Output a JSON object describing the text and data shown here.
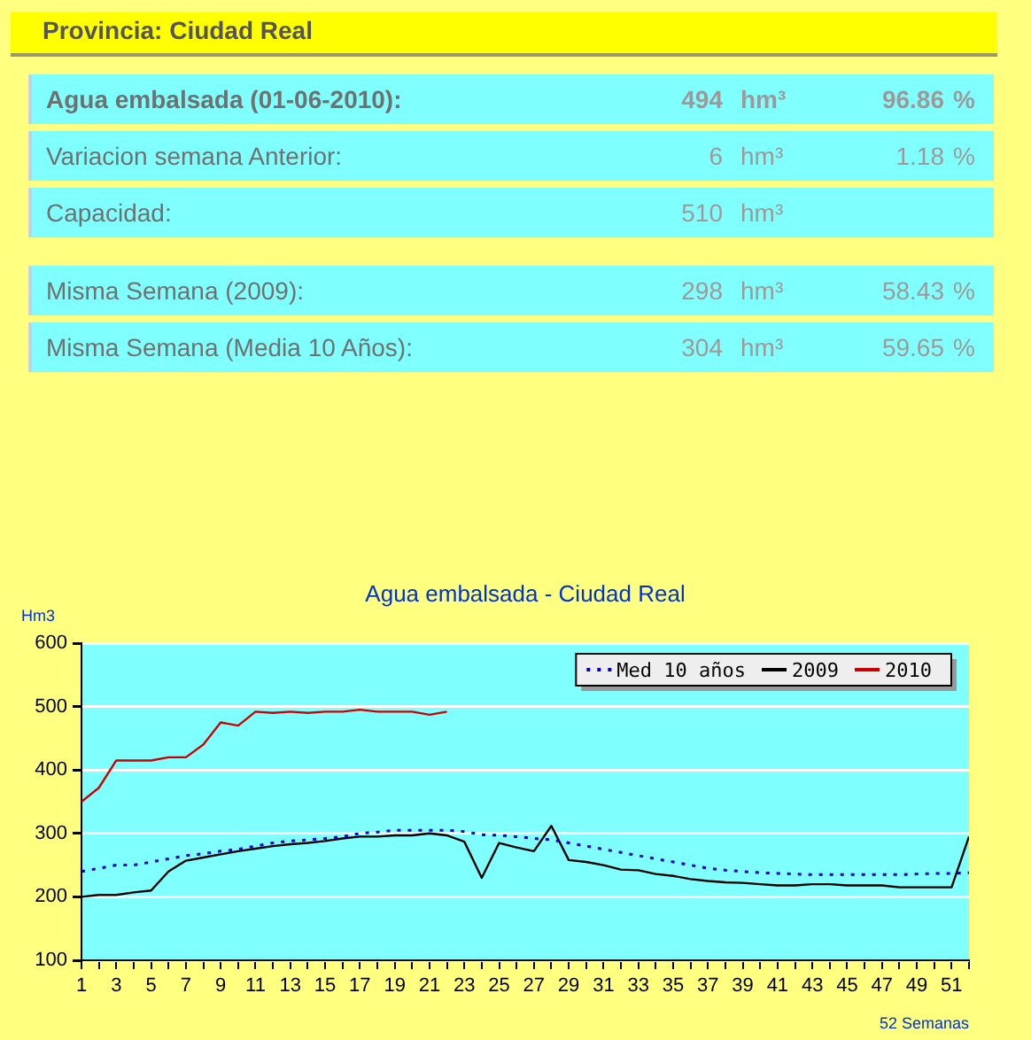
{
  "chart_data": [
    {
      "type": "other",
      "title": "Provincia: Ciudad Real",
      "annotations": [
        "Agua embalsada (01-06-2010):",
        "494",
        "hm³",
        "96.86",
        "%",
        "Variacion semana Anterior:",
        "6",
        "hm³",
        "1.18",
        "%",
        "Capacidad:",
        "510",
        "hm³",
        null,
        null,
        "Misma Semana (2009):",
        "298",
        "hm³",
        "58.43",
        "%",
        "Misma Semana (Media 10 Años):",
        "304",
        "hm³",
        "59.65",
        "%"
      ]
    },
    {
      "type": "line",
      "title": "Agua embalsada - Ciudad Real",
      "ylabel": "Hm3",
      "xlabel": "52 Semanas",
      "x": [
        1,
        2,
        3,
        4,
        5,
        6,
        7,
        8,
        9,
        10,
        11,
        12,
        13,
        14,
        15,
        16,
        17,
        18,
        19,
        20,
        21,
        22,
        23,
        24,
        25,
        26,
        27,
        28,
        29,
        30,
        31,
        32,
        33,
        34,
        35,
        36,
        37,
        38,
        39,
        40,
        41,
        42,
        43,
        44,
        45,
        46,
        47,
        48,
        49,
        50,
        51,
        52
      ],
      "xlim": [
        1,
        52
      ],
      "xticks": [
        1,
        {
          "value": 2,
          "label": null
        },
        3,
        {
          "value": 4,
          "label": null
        },
        5,
        {
          "value": 6,
          "label": null
        },
        7,
        {
          "value": 8,
          "label": null
        },
        9,
        {
          "value": 10,
          "label": null
        },
        11,
        {
          "value": 12,
          "label": null
        },
        13,
        {
          "value": 14,
          "label": null
        },
        15,
        {
          "value": 16,
          "label": null
        },
        17,
        {
          "value": 18,
          "label": null
        },
        19,
        {
          "value": 20,
          "label": null
        },
        21,
        {
          "value": 22,
          "label": null
        },
        23,
        {
          "value": 24,
          "label": null
        },
        25,
        {
          "value": 26,
          "label": null
        },
        27,
        {
          "value": 28,
          "label": null
        },
        29,
        {
          "value": 30,
          "label": null
        },
        31,
        {
          "value": 32,
          "label": null
        },
        33,
        {
          "value": 34,
          "label": null
        },
        35,
        {
          "value": 36,
          "label": null
        },
        37,
        {
          "value": 38,
          "label": null
        },
        39,
        {
          "value": 40,
          "label": null
        },
        41,
        {
          "value": 42,
          "label": null
        },
        43,
        {
          "value": 44,
          "label": null
        },
        45,
        {
          "value": 46,
          "label": null
        },
        47,
        {
          "value": 48,
          "label": null
        },
        49,
        {
          "value": 50,
          "label": null
        },
        51,
        {
          "value": 52,
          "label": null
        }
      ],
      "ylim": [
        100,
        600
      ],
      "yticks": [
        100,
        200,
        300,
        400,
        500,
        600
      ],
      "grid": "y",
      "legend": "top right",
      "marker": "none",
      "series": [
        {
          "name": "Med 10 años",
          "color": "#0000cc",
          "line_style": "dotted",
          "values": [
            240,
            245,
            250,
            250,
            255,
            260,
            265,
            268,
            272,
            275,
            280,
            285,
            288,
            290,
            292,
            295,
            300,
            302,
            305,
            305,
            305,
            305,
            303,
            298,
            297,
            295,
            292,
            290,
            285,
            280,
            275,
            270,
            265,
            260,
            255,
            250,
            245,
            242,
            240,
            238,
            237,
            236,
            235,
            235,
            235,
            235,
            235,
            235,
            236,
            237,
            237,
            238
          ]
        },
        {
          "name": "2009",
          "color": "#000000",
          "line_style": "solid",
          "values": [
            200,
            203,
            203,
            207,
            210,
            240,
            257,
            262,
            267,
            272,
            276,
            280,
            283,
            285,
            288,
            292,
            295,
            295,
            297,
            297,
            300,
            297,
            287,
            230,
            285,
            278,
            272,
            312,
            258,
            255,
            250,
            243,
            242,
            236,
            233,
            228,
            225,
            223,
            222,
            220,
            218,
            218,
            220,
            220,
            218,
            218,
            218,
            215,
            215,
            215,
            215,
            295
          ]
        },
        {
          "name": "2010",
          "color": "#cc0000",
          "line_style": "solid",
          "x": [
            1,
            2,
            3,
            4,
            5,
            6,
            7,
            8,
            9,
            10,
            11,
            12,
            13,
            14,
            15,
            16,
            17,
            18,
            19,
            20,
            21,
            22
          ],
          "values": [
            350,
            372,
            415,
            415,
            415,
            420,
            420,
            440,
            475,
            470,
            492,
            490,
            492,
            490,
            492,
            492,
            495,
            492,
            492,
            492,
            487,
            492
          ]
        }
      ]
    }
  ]
}
